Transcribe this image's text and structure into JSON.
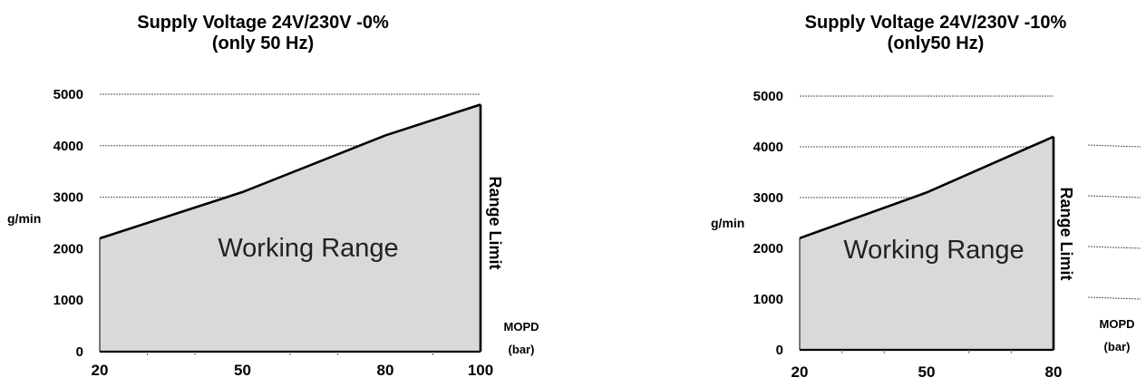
{
  "chart_data": [
    {
      "type": "area",
      "title": "Supply Voltage 24V/230V -0%",
      "subtitle": "(only 50 Hz)",
      "ylabel": "g/min",
      "xlabel": "MOPD",
      "xunit": "(bar)",
      "area_label": "Working Range",
      "limit_label": "Range Limit",
      "x": [
        20,
        50,
        80,
        100
      ],
      "y": [
        2200,
        3100,
        4200,
        4800
      ],
      "xticks": [
        "20",
        "50",
        "80",
        "100"
      ],
      "yticks": [
        "0",
        "1000",
        "2000",
        "3000",
        "4000",
        "5000"
      ],
      "xlim": [
        20,
        100
      ],
      "ylim": [
        0,
        5000
      ],
      "grid": true,
      "fill_color": "#d9d9d9",
      "line_color": "#000000"
    },
    {
      "type": "area",
      "title": "Supply Voltage 24V/230V -10%",
      "subtitle": "(only50 Hz)",
      "ylabel": "g/min",
      "xlabel": "MOPD",
      "xunit": "(bar)",
      "area_label": "Working Range",
      "limit_label": "Range Limit",
      "x": [
        20,
        50,
        80
      ],
      "y": [
        2200,
        3100,
        4200
      ],
      "xticks": [
        "20",
        "50",
        "80"
      ],
      "yticks": [
        "0",
        "1000",
        "2000",
        "3000",
        "4000",
        "5000"
      ],
      "xlim": [
        20,
        80
      ],
      "ylim": [
        0,
        5000
      ],
      "grid": true,
      "fill_color": "#d9d9d9",
      "line_color": "#000000"
    }
  ]
}
